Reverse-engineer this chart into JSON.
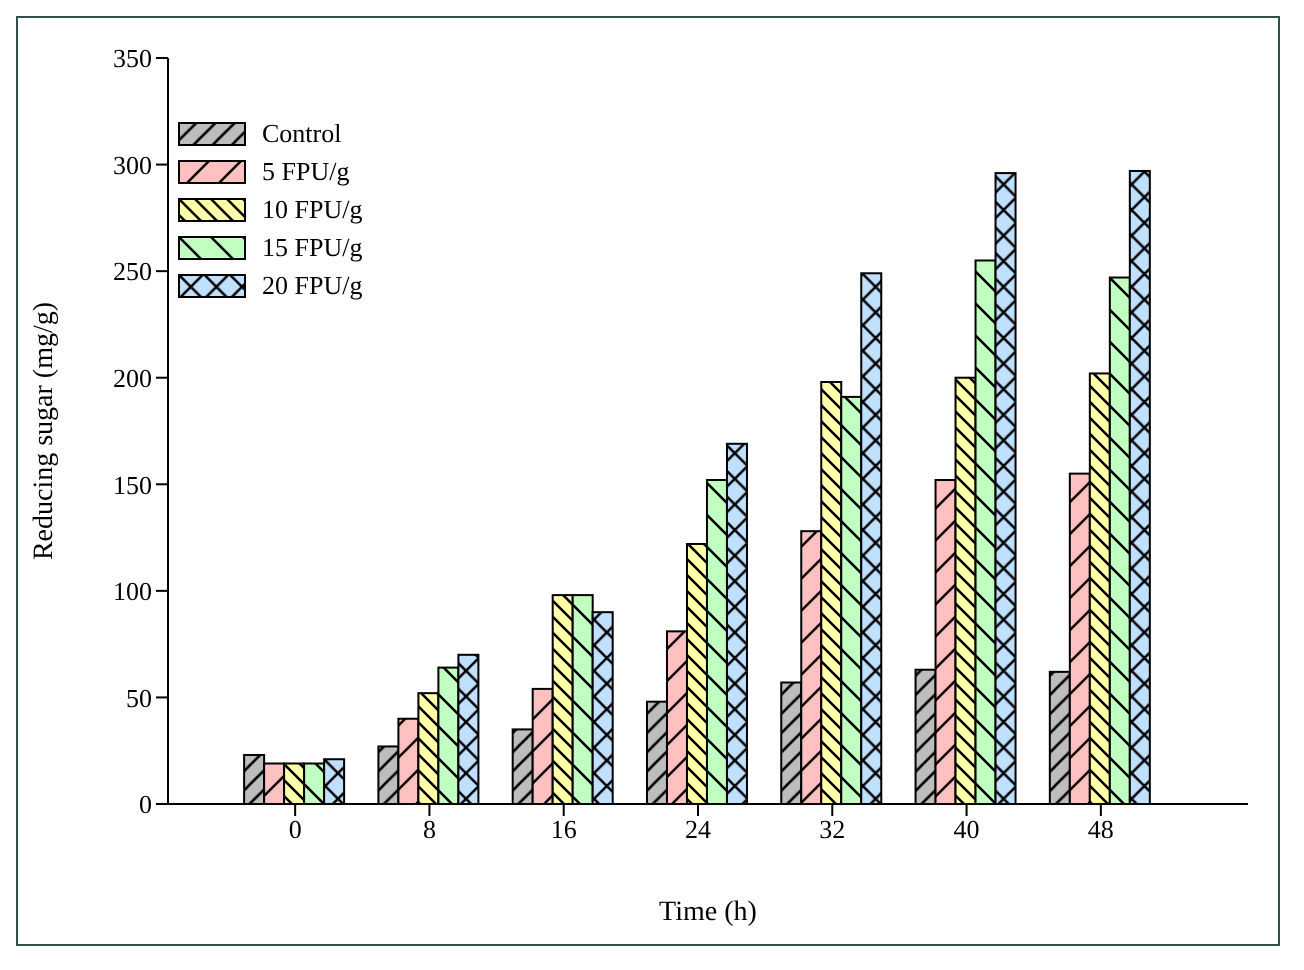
{
  "chart_data": {
    "type": "bar",
    "xlabel": "Time (h)",
    "ylabel": "Reducing sugar (mg/g)",
    "categories": [
      "0",
      "8",
      "16",
      "24",
      "32",
      "40",
      "48"
    ],
    "series": [
      {
        "name": "Control",
        "color": "#bdbdbd",
        "values": [
          23,
          27,
          35,
          48,
          57,
          63,
          62
        ]
      },
      {
        "name": "5 FPU/g",
        "color": "#ffc0c0",
        "values": [
          19,
          40,
          54,
          81,
          128,
          152,
          155
        ]
      },
      {
        "name": "10 FPU/g",
        "color": "#ffffa8",
        "values": [
          19,
          52,
          98,
          122,
          198,
          200,
          202
        ]
      },
      {
        "name": "15 FPU/g",
        "color": "#c0ffc0",
        "values": [
          19,
          64,
          98,
          152,
          191,
          255,
          247
        ]
      },
      {
        "name": "20 FPU/g",
        "color": "#c0e0ff",
        "values": [
          21,
          70,
          90,
          169,
          249,
          296,
          297
        ]
      }
    ],
    "ylim": [
      0,
      350
    ],
    "yticks": [
      0,
      50,
      100,
      150,
      200,
      250,
      300,
      350
    ],
    "grid": false,
    "legend": "top left"
  }
}
